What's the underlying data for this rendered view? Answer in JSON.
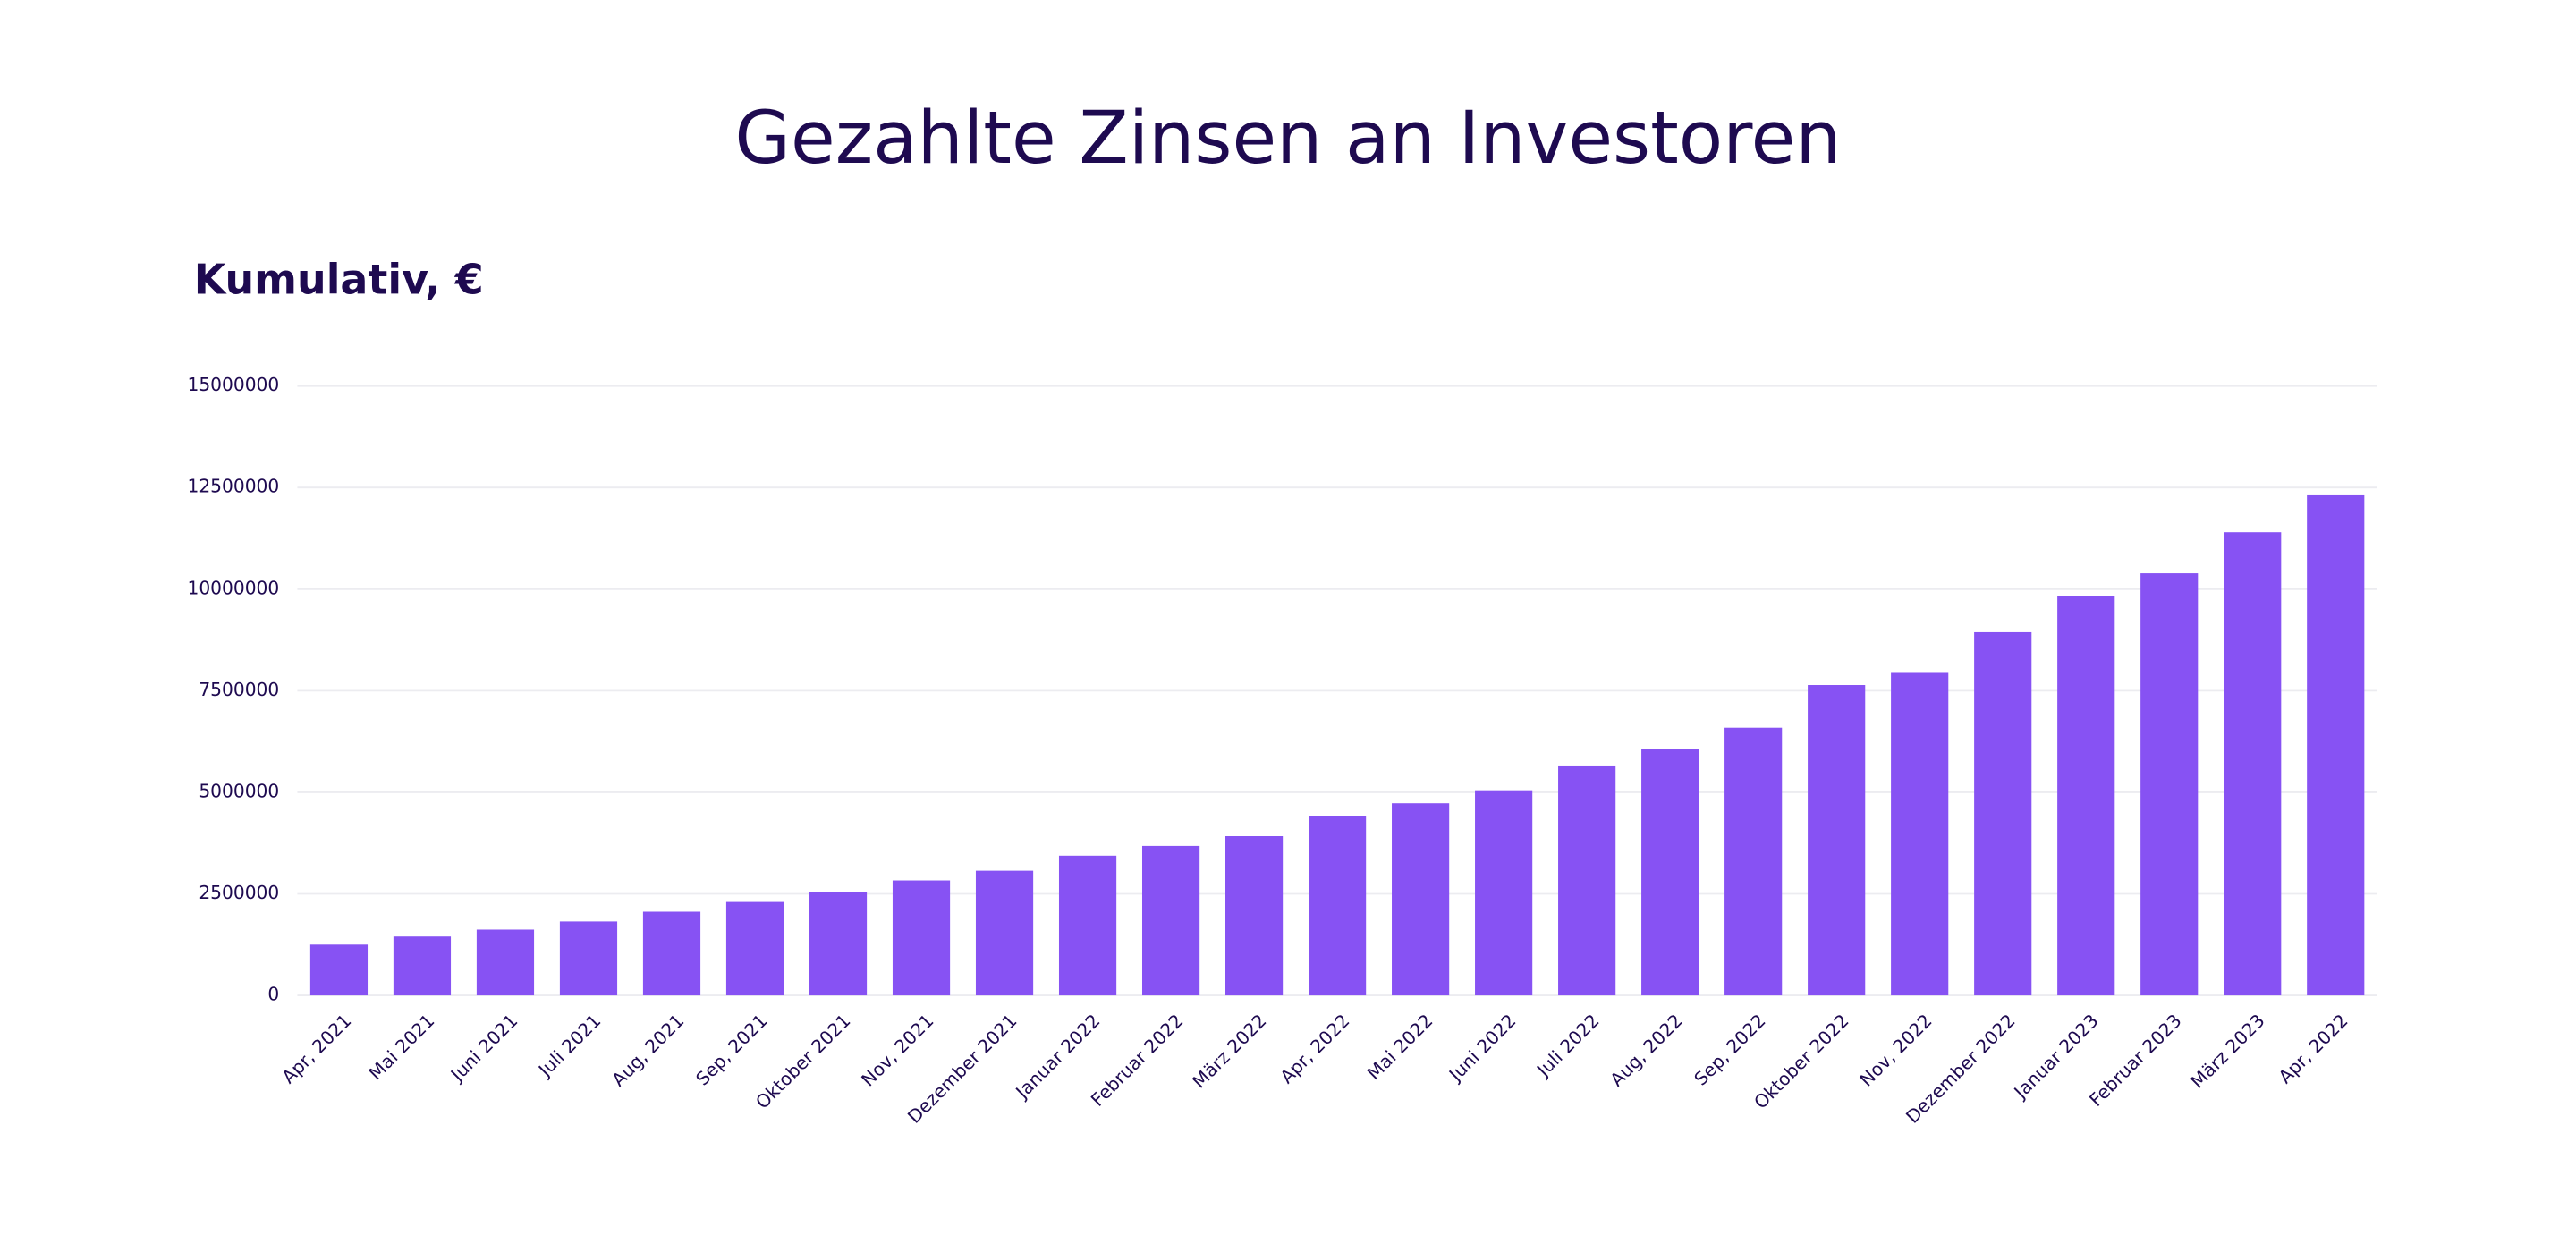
{
  "chart_data": {
    "type": "bar",
    "title": "Gezahlte Zinsen an Investoren",
    "subtitle": "Kumulativ, €",
    "categories": [
      "Apr, 2021",
      "Mai 2021",
      "Juni 2021",
      "Juli 2021",
      "Aug, 2021",
      "Sep, 2021",
      "Oktober 2021",
      "Nov, 2021",
      "Dezember 2021",
      "Januar 2022",
      "Februar 2022",
      "März 2022",
      "Apr, 2022",
      "Mai 2022",
      "Juni 2022",
      "Juli 2022",
      "Aug, 2022",
      "Sep, 2022",
      "Oktober 2022",
      "Nov, 2022",
      "Dezember 2022",
      "Januar 2023",
      "Februar 2023",
      "März 2023",
      "Apr, 2022"
    ],
    "values": [
      1250000,
      1450000,
      1620000,
      1820000,
      2060000,
      2300000,
      2550000,
      2830000,
      3070000,
      3440000,
      3680000,
      3920000,
      4410000,
      4730000,
      5050000,
      5660000,
      6060000,
      6590000,
      7640000,
      7960000,
      8940000,
      9820000,
      10390000,
      11400000,
      12330000
    ],
    "color": "#8752f3",
    "ylim": [
      0,
      15000000
    ],
    "yticks": [
      0,
      2500000,
      5000000,
      7500000,
      10000000,
      12500000,
      15000000
    ],
    "grid": true
  }
}
